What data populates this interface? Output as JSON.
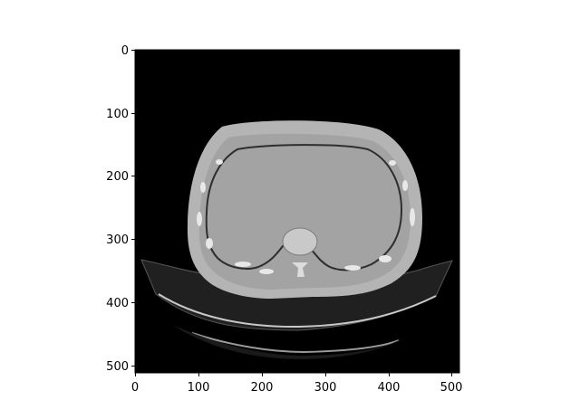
{
  "figure": {
    "background": "#ffffff",
    "image_description_colors": {
      "background": "#000000",
      "soft_tissue": "#a4a4a4",
      "outer_skin": "#b8b8b8",
      "bone": "#e6e6e6",
      "table": "#2a2a2a"
    },
    "x_axis": {
      "ticks": [
        "0",
        "100",
        "200",
        "300",
        "400",
        "500"
      ],
      "range": [
        0,
        512
      ]
    },
    "y_axis": {
      "ticks": [
        "0",
        "100",
        "200",
        "300",
        "400",
        "500"
      ],
      "range": [
        0,
        512
      ]
    }
  }
}
